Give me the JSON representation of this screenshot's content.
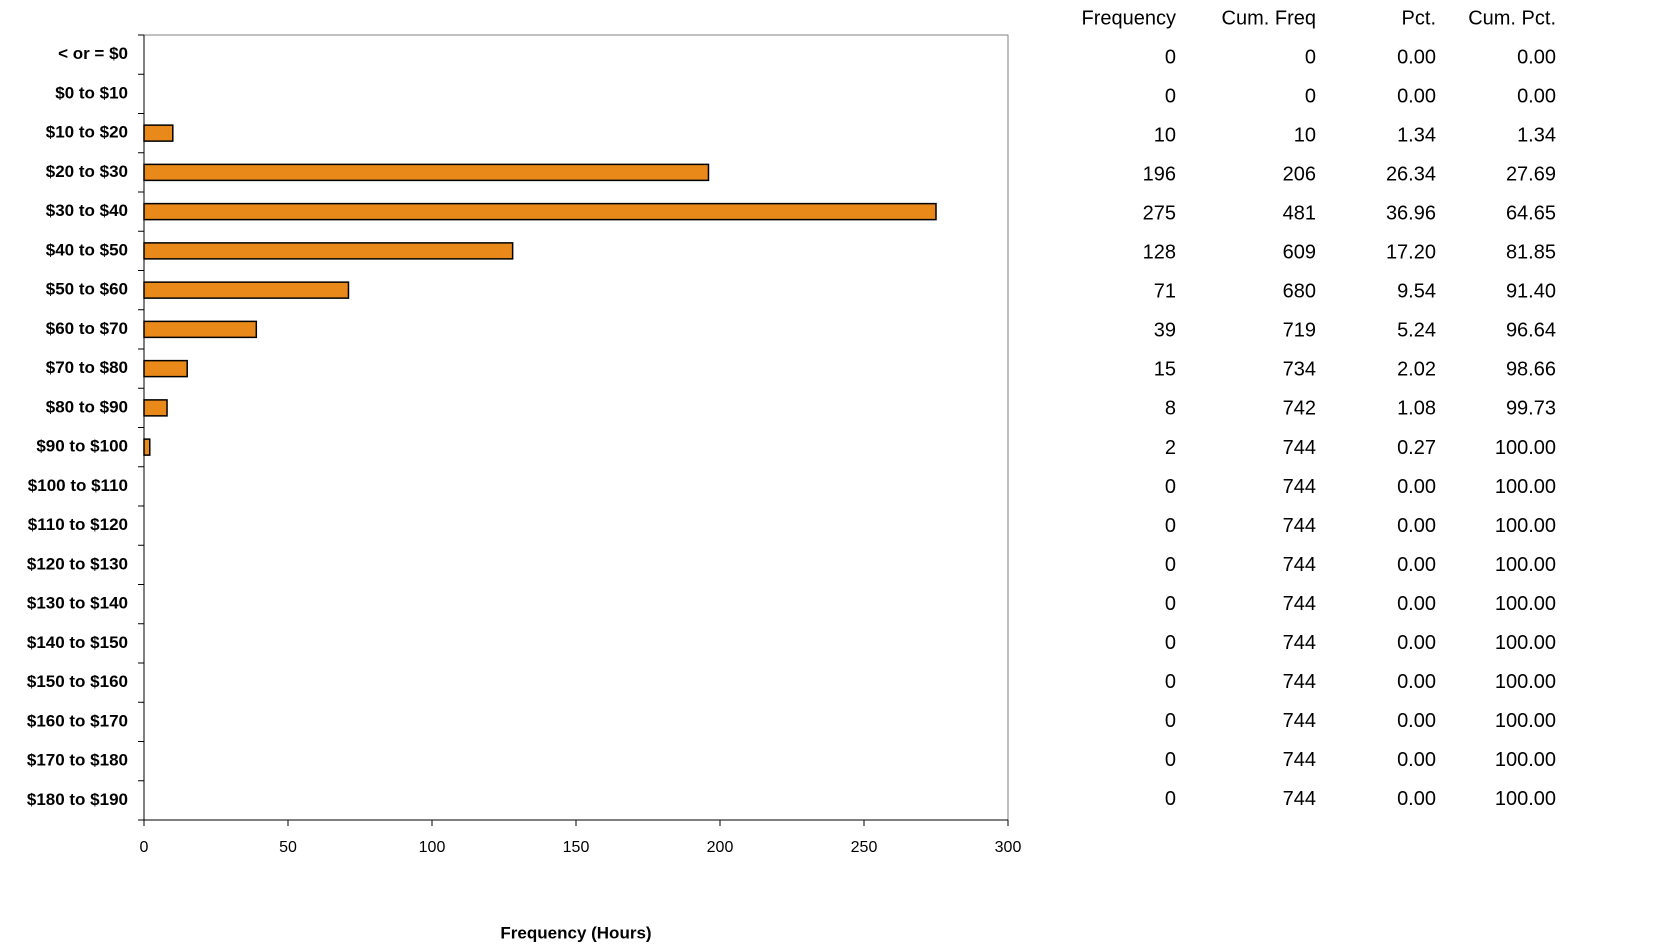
{
  "chart_data": {
    "type": "bar",
    "orientation": "horizontal",
    "x_label": "Frequency (Hours)",
    "categories": [
      "< or = $0",
      "$0 to $10",
      "$10 to $20",
      "$20 to $30",
      "$30 to $40",
      "$40 to $50",
      "$50 to $60",
      "$60 to $70",
      "$70 to $80",
      "$80 to $90",
      "$90 to $100",
      "$100 to $110",
      "$110 to $120",
      "$120 to $130",
      "$130 to $140",
      "$140 to $150",
      "$150 to $160",
      "$160 to $170",
      "$170 to $180",
      "$180 to $190"
    ],
    "values": [
      0,
      0,
      10,
      196,
      275,
      128,
      71,
      39,
      15,
      8,
      2,
      0,
      0,
      0,
      0,
      0,
      0,
      0,
      0,
      0
    ],
    "color": "#e8891a",
    "xlim": [
      0,
      300
    ],
    "xticks": [
      0,
      50,
      100,
      150,
      200,
      250,
      300
    ],
    "grid": false
  },
  "table": {
    "columns": [
      "Frequency",
      "Cum. Freq",
      "Pct.",
      "Cum. Pct."
    ],
    "rows": [
      [
        "0",
        "0",
        "0.00",
        "0.00"
      ],
      [
        "0",
        "0",
        "0.00",
        "0.00"
      ],
      [
        "10",
        "10",
        "1.34",
        "1.34"
      ],
      [
        "196",
        "206",
        "26.34",
        "27.69"
      ],
      [
        "275",
        "481",
        "36.96",
        "64.65"
      ],
      [
        "128",
        "609",
        "17.20",
        "81.85"
      ],
      [
        "71",
        "680",
        "9.54",
        "91.40"
      ],
      [
        "39",
        "719",
        "5.24",
        "96.64"
      ],
      [
        "15",
        "734",
        "2.02",
        "98.66"
      ],
      [
        "8",
        "742",
        "1.08",
        "99.73"
      ],
      [
        "2",
        "744",
        "0.27",
        "100.00"
      ],
      [
        "0",
        "744",
        "0.00",
        "100.00"
      ],
      [
        "0",
        "744",
        "0.00",
        "100.00"
      ],
      [
        "0",
        "744",
        "0.00",
        "100.00"
      ],
      [
        "0",
        "744",
        "0.00",
        "100.00"
      ],
      [
        "0",
        "744",
        "0.00",
        "100.00"
      ],
      [
        "0",
        "744",
        "0.00",
        "100.00"
      ],
      [
        "0",
        "744",
        "0.00",
        "100.00"
      ],
      [
        "0",
        "744",
        "0.00",
        "100.00"
      ],
      [
        "0",
        "744",
        "0.00",
        "100.00"
      ]
    ]
  }
}
